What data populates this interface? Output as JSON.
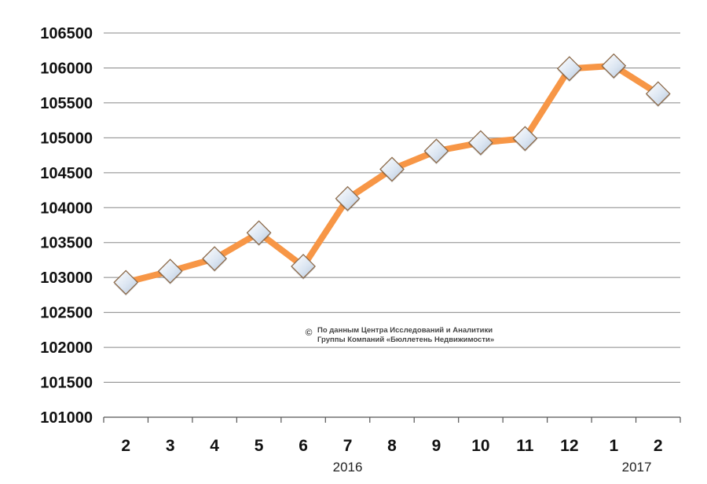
{
  "chart_data": {
    "type": "line",
    "categories": [
      "2",
      "3",
      "4",
      "5",
      "6",
      "7",
      "8",
      "9",
      "10",
      "11",
      "12",
      "1",
      "2"
    ],
    "values": [
      102930,
      103090,
      103270,
      103640,
      103160,
      104130,
      104550,
      104810,
      104930,
      104990,
      105990,
      106030,
      105630
    ],
    "ylim": [
      101000,
      106500
    ],
    "yticks": [
      "101000",
      "101500",
      "102000",
      "102500",
      "103000",
      "103500",
      "104000",
      "104500",
      "105000",
      "105500",
      "106000",
      "106500"
    ],
    "year_labels": [
      "2016",
      "2017"
    ],
    "grid": true,
    "legend": "none",
    "colors": {
      "line": "#f79646",
      "marker_fill": "#dce6f2",
      "marker_edge": "#8c6a4a",
      "grid": "#888888",
      "axis": "#555555"
    }
  },
  "annotation": {
    "copyright_symbol": "©",
    "line1": "По данным Центра Исследований и Аналитики",
    "line2": "Группы Компаний «Бюллетень Недвижимости»"
  }
}
